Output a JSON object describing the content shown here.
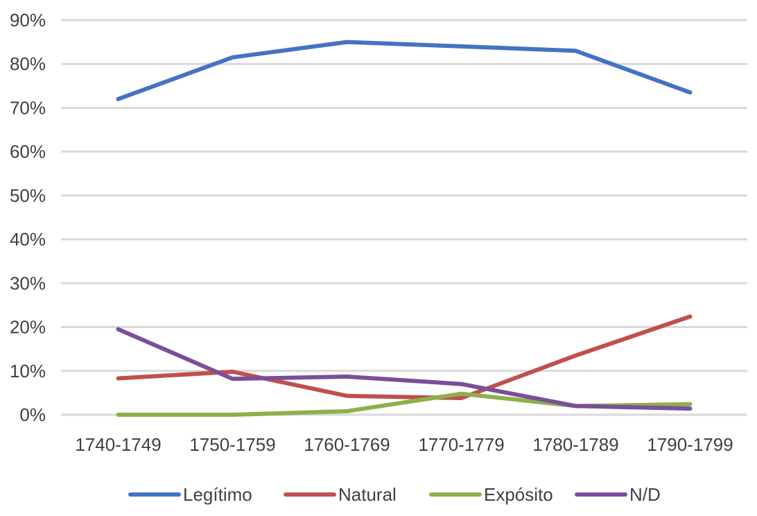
{
  "chart_data": {
    "type": "line",
    "categories": [
      "1740-1749",
      "1750-1759",
      "1760-1769",
      "1770-1779",
      "1780-1789",
      "1790-1799"
    ],
    "y_ticks": [
      "0%",
      "10%",
      "20%",
      "30%",
      "40%",
      "50%",
      "60%",
      "70%",
      "80%",
      "90%"
    ],
    "ylim": [
      0,
      90
    ],
    "grid": true,
    "legend_position": "bottom",
    "series": [
      {
        "name": "Legítimo",
        "color": "#4472C4",
        "values": [
          72,
          81.5,
          85,
          84,
          83,
          73.5
        ]
      },
      {
        "name": "Natural",
        "color": "#C0504D",
        "values": [
          8.3,
          9.8,
          4.3,
          3.8,
          13.5,
          22.4
        ]
      },
      {
        "name": "Expósito",
        "color": "#8DB04A",
        "values": [
          0,
          0,
          0.8,
          4.8,
          2,
          2.4
        ]
      },
      {
        "name": "N/D",
        "color": "#7A4F9A",
        "values": [
          19.5,
          8.2,
          8.7,
          7,
          2,
          1.4
        ]
      }
    ]
  }
}
